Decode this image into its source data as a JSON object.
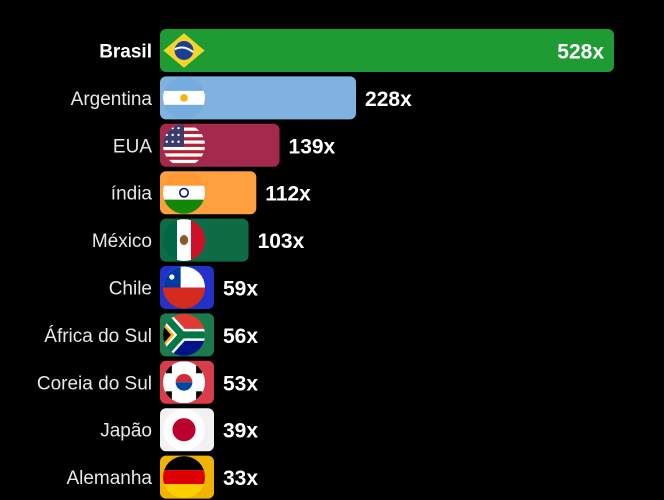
{
  "chart_data": {
    "type": "bar",
    "orientation": "horizontal",
    "title": "",
    "xlabel": "",
    "ylabel": "",
    "xlim": [
      0,
      528
    ],
    "grid": false,
    "legend": "none",
    "value_suffix": "x",
    "categories": [
      "Brasil",
      "Argentina",
      "EUA",
      "índia",
      "México",
      "Chile",
      "África do Sul",
      "Coreia do Sul",
      "Japão",
      "Alemanha"
    ],
    "values": [
      528,
      228,
      139,
      112,
      103,
      59,
      56,
      53,
      39,
      33
    ],
    "value_labels": [
      "528x",
      "228x",
      "139x",
      "112x",
      "103x",
      "59x",
      "56x",
      "53x",
      "39x",
      "33x"
    ],
    "bar_colors": [
      "#1f9b33",
      "#7fb2df",
      "#a3294d",
      "#ff9f3d",
      "#0f6b44",
      "#2431c9",
      "#1d7a4a",
      "#d93d4a",
      "#f2f2f2",
      "#f0b300"
    ],
    "highlight_category": "Brasil",
    "highlight_value_color": "#dcee55",
    "flag_icons": [
      "brazil-flag-icon",
      "argentina-flag-icon",
      "usa-flag-icon",
      "india-flag-icon",
      "mexico-flag-icon",
      "chile-flag-icon",
      "south-africa-flag-icon",
      "south-korea-flag-icon",
      "japan-flag-icon",
      "germany-flag-icon"
    ]
  }
}
